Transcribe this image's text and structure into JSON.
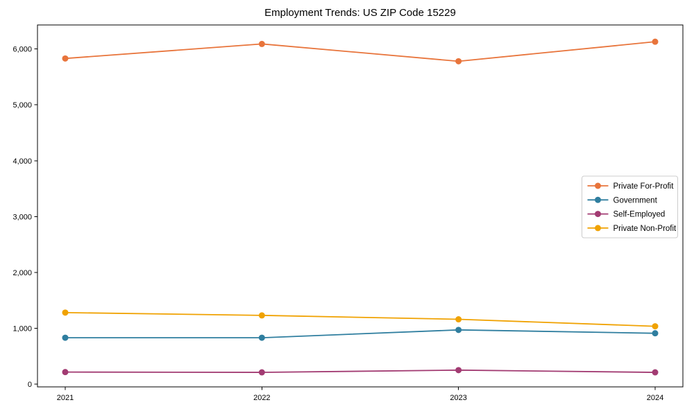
{
  "figure": {
    "background": "#ffffff",
    "axis_color": "#000000",
    "legend_border_color": "#cccccc",
    "legend_background": "#ffffff"
  },
  "chart_data": {
    "type": "line",
    "title": "Employment Trends: US ZIP Code 15229",
    "x": [
      "2021",
      "2022",
      "2023",
      "2024"
    ],
    "series": [
      {
        "name": "Private For-Profit",
        "color": "#e8743b",
        "values": [
          5830,
          6090,
          5780,
          6130
        ]
      },
      {
        "name": "Government",
        "color": "#2f7e9f",
        "values": [
          830,
          830,
          970,
          910
        ]
      },
      {
        "name": "Self-Employed",
        "color": "#a23b72",
        "values": [
          215,
          210,
          250,
          210
        ]
      },
      {
        "name": "Private Non-Profit",
        "color": "#f0a202",
        "values": [
          1280,
          1230,
          1160,
          1035
        ]
      }
    ],
    "xlabel": "",
    "ylabel": "",
    "ylim": [
      -50,
      6430
    ],
    "yticks": [
      0,
      1000,
      2000,
      3000,
      4000,
      5000,
      6000
    ],
    "ytick_labels": [
      "0",
      "1,000",
      "2,000",
      "3,000",
      "4,000",
      "5,000",
      "6,000"
    ],
    "grid": false,
    "legend_position": "center-right",
    "marker": "circle",
    "line_width": 1.8,
    "marker_radius": 4.5
  }
}
